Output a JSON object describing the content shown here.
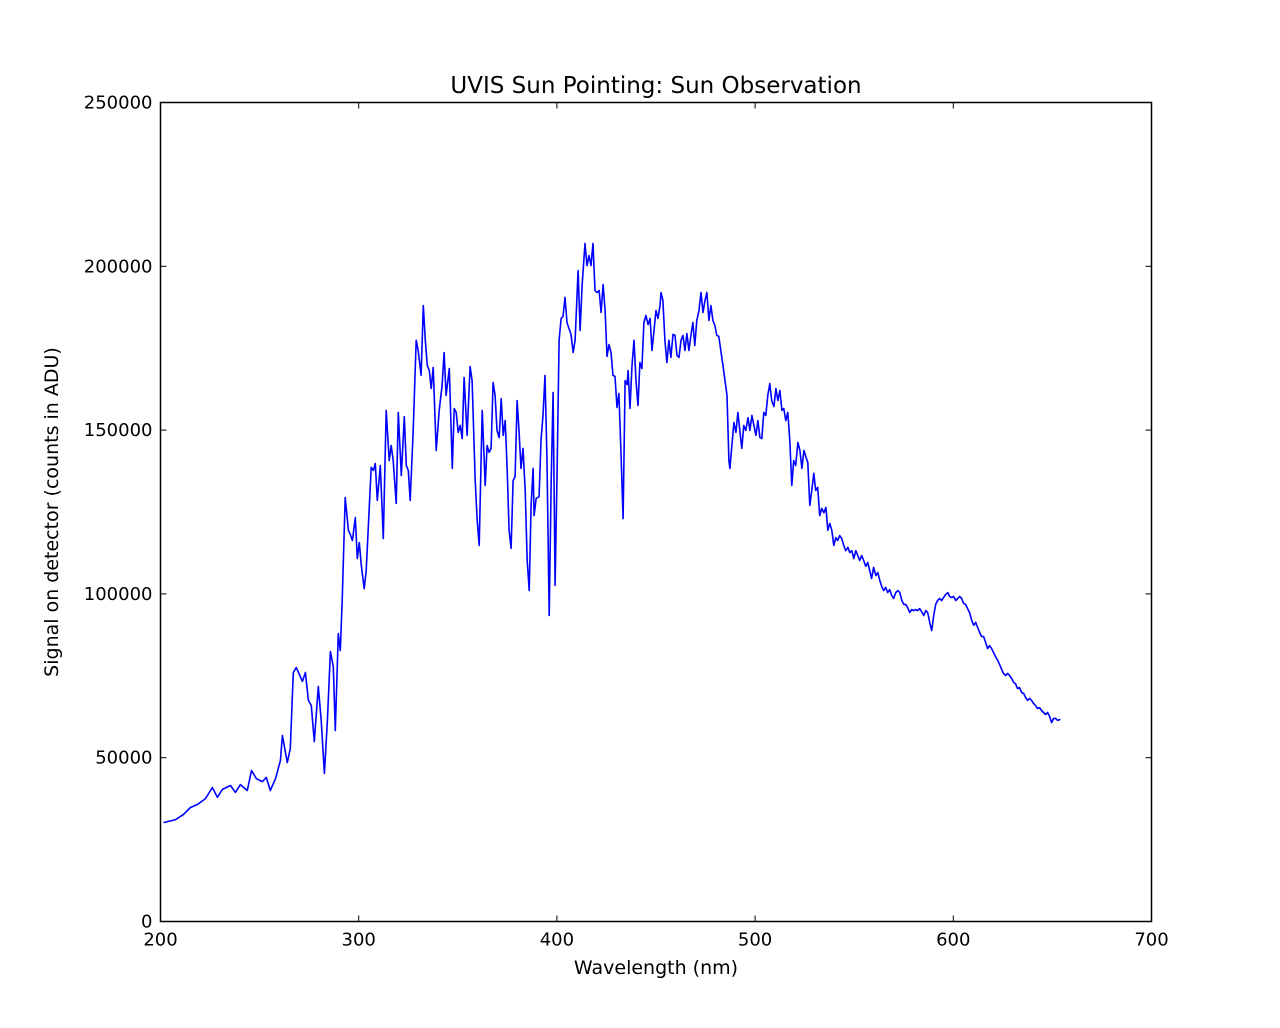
{
  "chart_data": {
    "type": "line",
    "title": "UVIS Sun Pointing: Sun Observation",
    "xlabel": "Wavelength (nm)",
    "ylabel": "Signal on detector (counts in ADU)",
    "xlim": [
      200,
      700
    ],
    "ylim": [
      0,
      250000
    ],
    "xticks": [
      200,
      300,
      400,
      500,
      600,
      700
    ],
    "yticks": [
      0,
      50000,
      100000,
      150000,
      200000,
      250000
    ],
    "grid": false,
    "series": [
      {
        "name": "Sun Observation",
        "color": "#0000ff",
        "x": [
          201.5,
          207.6,
          211.6,
          215.1,
          218.6,
          222.7,
          226.2,
          228.7,
          231.2,
          235.3,
          237.8,
          240.3,
          243.8,
          245.9,
          248.4,
          251.4,
          253.4,
          255.4,
          258.0,
          260.5,
          261.5,
          264.0,
          265.5,
          267.0,
          268.5,
          270.1,
          271.6,
          273.1,
          274.6,
          276.1,
          277.6,
          279.6,
          281.1,
          282.7,
          284.2,
          285.7,
          287.2,
          288.2,
          289.7,
          290.7,
          291.7,
          293.2,
          294.8,
          295.8,
          296.8,
          298.3,
          299.3,
          300.3,
          301.3,
          302.8,
          303.8,
          306.3,
          307.4,
          308.4,
          309.4,
          310.9,
          312.4,
          313.9,
          315.4,
          316.4,
          317.4,
          318.9,
          320.0,
          321.5,
          323.0,
          324.0,
          325.0,
          326.0,
          327.5,
          329.0,
          330.0,
          331.5,
          332.6,
          333.6,
          334.6,
          335.6,
          336.6,
          337.6,
          339.1,
          340.6,
          342.1,
          343.1,
          344.1,
          345.7,
          347.2,
          348.2,
          349.2,
          350.2,
          351.2,
          352.2,
          353.2,
          354.7,
          356.2,
          357.2,
          358.8,
          359.8,
          360.8,
          362.3,
          363.8,
          364.8,
          365.8,
          366.8,
          367.8,
          368.8,
          369.8,
          370.9,
          371.9,
          372.9,
          373.9,
          374.9,
          375.9,
          376.9,
          377.9,
          378.9,
          379.9,
          380.9,
          381.9,
          382.9,
          384.0,
          385.0,
          386.0,
          387.0,
          388.0,
          388.5,
          389.5,
          391.0,
          392.0,
          393.0,
          394.0,
          395.0,
          396.1,
          397.1,
          398.1,
          399.1,
          400.1,
          401.1,
          402.1,
          403.1,
          404.1,
          405.1,
          406.1,
          407.1,
          408.2,
          409.2,
          410.7,
          411.7,
          412.7,
          414.2,
          415.2,
          416.2,
          417.2,
          418.2,
          419.2,
          420.2,
          421.3,
          422.3,
          423.3,
          424.3,
          425.3,
          426.3,
          427.3,
          428.3,
          429.3,
          430.3,
          431.3,
          432.3,
          433.4,
          434.4,
          435.4,
          435.9,
          436.9,
          437.9,
          438.9,
          439.9,
          440.9,
          441.9,
          442.9,
          443.9,
          444.9,
          446.0,
          447.0,
          448.0,
          449.0,
          450.0,
          451.0,
          452.0,
          452.5,
          453.5,
          454.5,
          455.5,
          456.5,
          457.5,
          458.6,
          459.6,
          460.6,
          461.6,
          462.6,
          463.6,
          464.6,
          465.6,
          466.6,
          467.6,
          468.6,
          469.6,
          470.6,
          471.7,
          472.7,
          473.7,
          474.7,
          475.7,
          476.7,
          477.7,
          478.7,
          479.7,
          480.7,
          481.7,
          482.7,
          483.8,
          484.8,
          485.8,
          486.8,
          487.3,
          488.3,
          489.3,
          490.3,
          491.3,
          492.3,
          493.3,
          494.3,
          495.3,
          496.4,
          497.4,
          498.4,
          499.4,
          500.4,
          501.4,
          502.4,
          503.4,
          504.4,
          505.4,
          506.4,
          507.4,
          508.4,
          509.5,
          510.5,
          511.5,
          512.5,
          513.5,
          514.5,
          515.5,
          516.5,
          517.5,
          518.5,
          519.5,
          520.5,
          521.6,
          522.6,
          523.6,
          524.6,
          525.6,
          526.6,
          527.6,
          528.6,
          529.6,
          530.6,
          531.6,
          532.6,
          533.6,
          534.7,
          535.7,
          536.7,
          537.7,
          538.7,
          539.7,
          540.7,
          541.7,
          542.7,
          543.7,
          544.7,
          545.7,
          546.8,
          547.8,
          548.8,
          549.8,
          550.8,
          551.8,
          552.8,
          553.8,
          554.8,
          555.8,
          556.8,
          557.8,
          558.8,
          559.8,
          560.9,
          561.9,
          562.9,
          563.9,
          564.9,
          565.9,
          566.9,
          567.9,
          568.9,
          569.9,
          571.0,
          572.0,
          573.0,
          574.0,
          575.0,
          576.0,
          577.0,
          578.0,
          579.0,
          580.0,
          581.0,
          582.0,
          583.0,
          584.0,
          585.1,
          586.1,
          587.1,
          588.1,
          589.1,
          590.1,
          591.1,
          592.1,
          593.1,
          594.1,
          595.1,
          596.1,
          597.2,
          598.2,
          599.2,
          600.2,
          601.2,
          602.2,
          603.2,
          604.2,
          605.2,
          606.2,
          607.2,
          608.2,
          609.3,
          610.3,
          611.3,
          612.3,
          613.3,
          614.3,
          615.3,
          616.3,
          617.3,
          618.3,
          619.3,
          620.3,
          621.3,
          622.4,
          623.4,
          624.4,
          625.4,
          626.4,
          627.4,
          628.4,
          629.4,
          630.4,
          631.4,
          632.4,
          633.4,
          634.5,
          635.5,
          636.5,
          637.5,
          638.5,
          639.5,
          640.5,
          641.5,
          642.5,
          643.5,
          644.5,
          645.5,
          646.5,
          647.6,
          648.6,
          649.6,
          650.6,
          651.6,
          652.6,
          654.1
        ],
        "y": [
          30200,
          31100,
          32700,
          34800,
          35700,
          37500,
          40900,
          37900,
          40300,
          41500,
          39400,
          41800,
          40000,
          46100,
          43600,
          42700,
          44000,
          40000,
          43600,
          49100,
          56800,
          48500,
          52800,
          76000,
          77500,
          75400,
          73300,
          76000,
          67500,
          65900,
          54900,
          71700,
          61400,
          45200,
          61400,
          82400,
          77800,
          58300,
          87900,
          82700,
          98000,
          129400,
          119400,
          118100,
          116300,
          123300,
          110800,
          115700,
          108700,
          101600,
          107100,
          138600,
          137700,
          139800,
          128500,
          139200,
          116900,
          156000,
          140700,
          145300,
          140700,
          127600,
          155400,
          136100,
          154100,
          139200,
          137700,
          128500,
          149900,
          177400,
          174300,
          166700,
          188000,
          177400,
          169700,
          168200,
          162700,
          169100,
          143800,
          156000,
          163600,
          173700,
          160600,
          168800,
          138300,
          156600,
          155400,
          149300,
          151400,
          147400,
          166100,
          148400,
          169400,
          165100,
          134600,
          122400,
          114800,
          156000,
          133100,
          145300,
          143200,
          144400,
          164500,
          160600,
          149900,
          147700,
          159600,
          148400,
          152900,
          137700,
          119400,
          113900,
          134600,
          135800,
          159000,
          149900,
          138300,
          144400,
          131600,
          110200,
          101000,
          127000,
          138300,
          123900,
          129100,
          129700,
          146800,
          154500,
          166700,
          140700,
          93400,
          134600,
          161500,
          102600,
          137700,
          177400,
          184100,
          184700,
          190500,
          182800,
          181000,
          179200,
          173700,
          177400,
          198700,
          180400,
          194100,
          207000,
          200200,
          203300,
          200200,
          207000,
          192600,
          192000,
          192600,
          185900,
          194400,
          186500,
          172500,
          176100,
          173700,
          166700,
          166400,
          156900,
          161200,
          143800,
          123000,
          165100,
          163900,
          168200,
          156600,
          169700,
          177400,
          165100,
          157500,
          170600,
          168800,
          182800,
          185000,
          182200,
          184100,
          174300,
          180400,
          186500,
          184100,
          188000,
          192000,
          189600,
          177400,
          170600,
          177400,
          172200,
          179200,
          178900,
          172800,
          172200,
          177400,
          178900,
          174300,
          179500,
          174300,
          178900,
          182800,
          175800,
          183500,
          186500,
          192000,
          185900,
          189600,
          192000,
          183500,
          188000,
          183500,
          181900,
          178900,
          178600,
          174300,
          169700,
          165100,
          160600,
          140700,
          138300,
          145300,
          152300,
          149300,
          155400,
          149900,
          144400,
          151400,
          149900,
          153800,
          149900,
          154500,
          151400,
          148400,
          152900,
          147700,
          147400,
          155400,
          154500,
          160600,
          164200,
          159000,
          157200,
          162700,
          159000,
          162100,
          156000,
          156600,
          152900,
          155400,
          146800,
          133100,
          140700,
          139200,
          146200,
          143800,
          138300,
          143800,
          141900,
          140100,
          127000,
          131600,
          136800,
          131600,
          132500,
          123900,
          126100,
          124800,
          126400,
          119400,
          121500,
          119400,
          114800,
          117200,
          116300,
          117800,
          116900,
          114800,
          113200,
          114200,
          112600,
          113200,
          110800,
          113200,
          111700,
          110200,
          111700,
          110200,
          108400,
          109600,
          107100,
          104700,
          108100,
          105600,
          106500,
          104100,
          102300,
          101000,
          102000,
          100400,
          101300,
          99500,
          98600,
          100400,
          101000,
          100400,
          98000,
          96800,
          96800,
          95800,
          94300,
          95200,
          94900,
          95200,
          94900,
          95500,
          94600,
          93400,
          94900,
          94300,
          91300,
          88800,
          93400,
          96800,
          98000,
          98600,
          98000,
          98900,
          99800,
          100400,
          99200,
          98900,
          99200,
          98000,
          98600,
          99200,
          98600,
          97100,
          96800,
          95500,
          94300,
          91900,
          90400,
          91300,
          89700,
          88200,
          87000,
          87000,
          85200,
          83300,
          84200,
          83300,
          82100,
          80900,
          79700,
          78400,
          76900,
          75700,
          75100,
          75700,
          75100,
          74200,
          73000,
          72600,
          71100,
          71400,
          69900,
          69600,
          68400,
          67500,
          68100,
          67500,
          66500,
          65900,
          65000,
          65300,
          64400,
          63800,
          63200,
          63800,
          62600,
          60700,
          62000,
          62000,
          61400,
          61700
        ]
      }
    ],
    "xtick_labels": [
      "200",
      "300",
      "400",
      "500",
      "600",
      "700"
    ],
    "ytick_labels": [
      "0",
      "50000",
      "100000",
      "150000",
      "200000",
      "250000"
    ]
  }
}
